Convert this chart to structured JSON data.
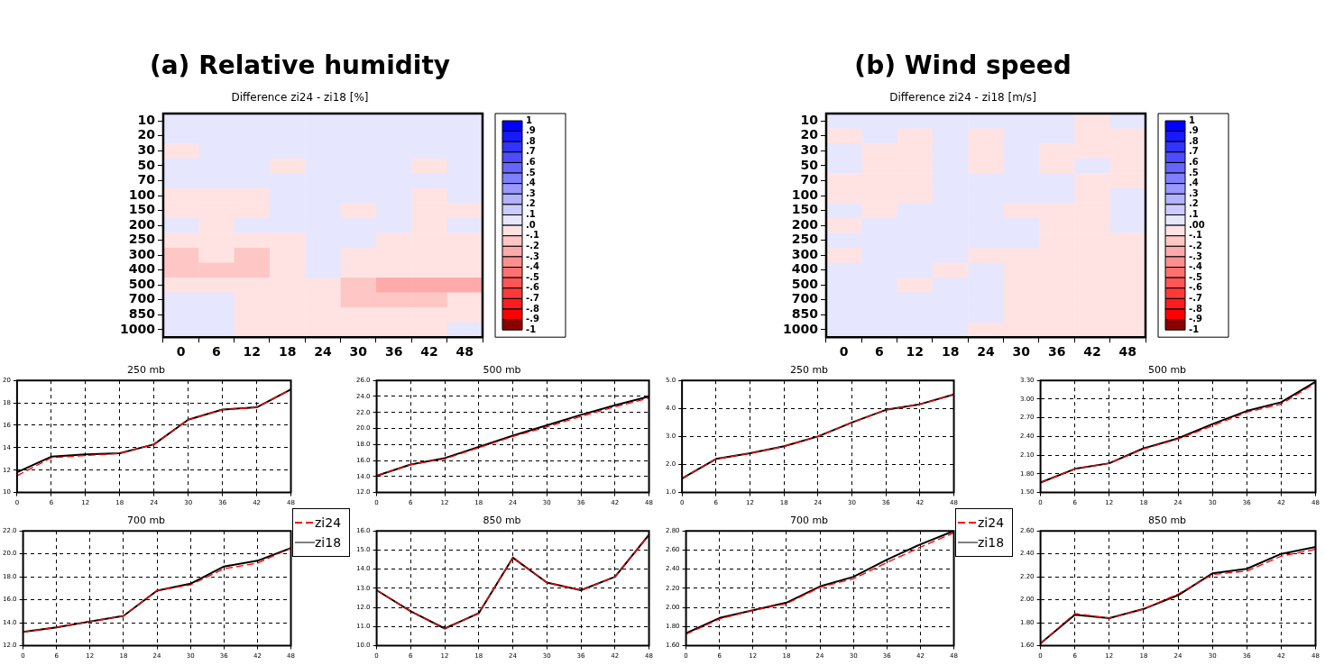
{
  "chart_data": [
    {
      "type": "heatmap",
      "title": "(a) Relative humidity",
      "subtitle": "Difference zi24 - zi18 [%]",
      "categories": [
        "0",
        "6",
        "12",
        "18",
        "24",
        "30",
        "36",
        "42",
        "48"
      ],
      "y_categories": [
        "10",
        "20",
        "30",
        "50",
        "70",
        "100",
        "150",
        "200",
        "250",
        "300",
        "400",
        "500",
        "700",
        "850",
        "1000"
      ],
      "cells": [
        [
          0.1,
          0.1,
          0.1,
          0.1,
          0.1,
          0.1,
          0.1,
          0.1,
          0.1
        ],
        [
          0.1,
          0.1,
          0.1,
          0.1,
          0.1,
          0.1,
          0.1,
          0.1,
          0.1
        ],
        [
          -0.1,
          0.1,
          0.1,
          0.1,
          0.1,
          0.1,
          0.1,
          0.1,
          0.1
        ],
        [
          0.1,
          0.1,
          0.1,
          -0.1,
          0.1,
          0.1,
          0.1,
          -0.1,
          0.1
        ],
        [
          0.1,
          0.1,
          0.1,
          0.1,
          0.1,
          0.1,
          0.1,
          0.1,
          0.1
        ],
        [
          -0.1,
          -0.1,
          -0.1,
          0.1,
          0.1,
          0.1,
          0.1,
          -0.1,
          0.1
        ],
        [
          -0.1,
          -0.1,
          -0.1,
          0.1,
          0.1,
          -0.1,
          0.1,
          -0.1,
          -0.1
        ],
        [
          0.1,
          -0.1,
          0.1,
          0.1,
          0.1,
          0.1,
          0.1,
          -0.1,
          0.1
        ],
        [
          -0.1,
          -0.1,
          -0.1,
          -0.1,
          0.1,
          0.1,
          -0.1,
          -0.1,
          -0.1
        ],
        [
          -0.2,
          -0.1,
          -0.2,
          -0.1,
          0.1,
          -0.1,
          -0.1,
          -0.1,
          -0.1
        ],
        [
          -0.2,
          -0.2,
          -0.2,
          -0.1,
          0.1,
          -0.1,
          -0.1,
          -0.1,
          -0.1
        ],
        [
          -0.1,
          -0.1,
          -0.1,
          -0.1,
          -0.1,
          -0.2,
          -0.3,
          -0.3,
          -0.3
        ],
        [
          0.1,
          0.1,
          -0.1,
          -0.1,
          -0.1,
          -0.2,
          -0.2,
          -0.2,
          -0.1
        ],
        [
          0.1,
          0.1,
          -0.1,
          -0.1,
          -0.1,
          -0.1,
          -0.1,
          -0.1,
          -0.1
        ],
        [
          0.1,
          0.1,
          -0.1,
          -0.1,
          -0.1,
          -0.1,
          -0.1,
          -0.1,
          0.1
        ]
      ],
      "clim": [
        -1,
        1
      ],
      "cticks": [
        {
          "value": 1,
          "label": "1"
        },
        {
          "value": 0.9,
          "label": ".9"
        },
        {
          "value": 0.8,
          "label": ".8"
        },
        {
          "value": 0.7,
          "label": ".7"
        },
        {
          "value": 0.6,
          "label": ".6"
        },
        {
          "value": 0.5,
          "label": ".5"
        },
        {
          "value": 0.4,
          "label": ".4"
        },
        {
          "value": 0.3,
          "label": ".3"
        },
        {
          "value": 0.2,
          "label": ".2"
        },
        {
          "value": 0.1,
          "label": ".1"
        },
        {
          "value": 0,
          "label": ".0"
        },
        {
          "value": -0.1,
          "label": "-.1"
        },
        {
          "value": -0.2,
          "label": "-.2"
        },
        {
          "value": -0.3,
          "label": "-.3"
        },
        {
          "value": -0.4,
          "label": "-.4"
        },
        {
          "value": -0.5,
          "label": "-.5"
        },
        {
          "value": -0.6,
          "label": "-.6"
        },
        {
          "value": -0.7,
          "label": "-.7"
        },
        {
          "value": -0.8,
          "label": "-.8"
        },
        {
          "value": -0.9,
          "label": "-.9"
        },
        {
          "value": -1,
          "label": "-1"
        }
      ]
    },
    {
      "type": "heatmap",
      "title": "(b) Wind speed",
      "subtitle": "Difference zi24 - zi18 [m/s]",
      "categories": [
        "0",
        "6",
        "12",
        "18",
        "24",
        "30",
        "36",
        "42",
        "48"
      ],
      "y_categories": [
        "10",
        "20",
        "30",
        "50",
        "70",
        "100",
        "150",
        "200",
        "250",
        "300",
        "400",
        "500",
        "700",
        "850",
        "1000"
      ],
      "cells": [
        [
          0.1,
          0.1,
          0.1,
          0.1,
          0.1,
          0.1,
          0.1,
          -0.1,
          0.1
        ],
        [
          -0.1,
          0.1,
          -0.1,
          0.1,
          -0.1,
          0.1,
          0.1,
          -0.1,
          -0.1
        ],
        [
          0.1,
          -0.1,
          -0.1,
          0.1,
          -0.1,
          0.1,
          -0.1,
          -0.1,
          -0.1
        ],
        [
          0.1,
          -0.1,
          -0.1,
          0.1,
          -0.1,
          0.1,
          -0.1,
          0.1,
          -0.1
        ],
        [
          -0.1,
          -0.1,
          -0.1,
          0.1,
          0.1,
          0.1,
          0.1,
          -0.1,
          -0.1
        ],
        [
          -0.1,
          -0.1,
          -0.1,
          0.1,
          0.1,
          0.1,
          0.1,
          -0.1,
          0.1
        ],
        [
          0.1,
          -0.1,
          0.1,
          0.1,
          0.1,
          -0.1,
          -0.1,
          -0.1,
          0.1
        ],
        [
          -0.1,
          0.1,
          0.1,
          0.1,
          0.1,
          0.1,
          -0.1,
          -0.1,
          0.1
        ],
        [
          0.1,
          0.1,
          0.1,
          0.1,
          0.1,
          0.1,
          -0.1,
          -0.1,
          -0.1
        ],
        [
          -0.1,
          0.1,
          0.1,
          0.1,
          -0.1,
          -0.1,
          -0.1,
          -0.1,
          -0.1
        ],
        [
          0.1,
          0.1,
          0.1,
          -0.1,
          0.1,
          -0.1,
          -0.1,
          -0.1,
          -0.1
        ],
        [
          0.1,
          0.1,
          -0.1,
          0.1,
          0.1,
          -0.1,
          -0.1,
          -0.1,
          -0.1
        ],
        [
          0.1,
          0.1,
          0.1,
          0.1,
          0.1,
          -0.1,
          -0.1,
          -0.1,
          -0.1
        ],
        [
          0.1,
          0.1,
          0.1,
          0.1,
          0.1,
          -0.1,
          -0.1,
          -0.1,
          -0.1
        ],
        [
          0.1,
          0.1,
          0.1,
          0.1,
          -0.1,
          -0.1,
          -0.1,
          -0.1,
          -0.1
        ]
      ],
      "clim": [
        -1,
        1
      ],
      "cticks": [
        {
          "value": 1,
          "label": "1"
        },
        {
          "value": 0.9,
          "label": ".9"
        },
        {
          "value": 0.8,
          "label": ".8"
        },
        {
          "value": 0.7,
          "label": ".7"
        },
        {
          "value": 0.6,
          "label": ".6"
        },
        {
          "value": 0.5,
          "label": ".5"
        },
        {
          "value": 0.4,
          "label": ".4"
        },
        {
          "value": 0.3,
          "label": ".3"
        },
        {
          "value": 0.2,
          "label": ".2"
        },
        {
          "value": 0.1,
          "label": ".1"
        },
        {
          "value": 0,
          "label": ".00"
        },
        {
          "value": -0.1,
          "label": "-.1"
        },
        {
          "value": -0.2,
          "label": "-.2"
        },
        {
          "value": -0.3,
          "label": "-.3"
        },
        {
          "value": -0.4,
          "label": "-.4"
        },
        {
          "value": -0.5,
          "label": "-.5"
        },
        {
          "value": -0.6,
          "label": "-.6"
        },
        {
          "value": -0.7,
          "label": "-.7"
        },
        {
          "value": -0.8,
          "label": "-.8"
        },
        {
          "value": -0.9,
          "label": "-.9"
        },
        {
          "value": -1,
          "label": "-1"
        }
      ]
    },
    {
      "type": "line",
      "title": "250 mb",
      "x": [
        0,
        6,
        12,
        18,
        24,
        30,
        36,
        42,
        48
      ],
      "xlim": [
        0,
        48
      ],
      "xticks": [
        0,
        6,
        12,
        18,
        24,
        30,
        36,
        42,
        48
      ],
      "ylim": [
        10,
        20
      ],
      "yticks": [
        10,
        12,
        14,
        16,
        18,
        20
      ],
      "grid": true,
      "legend": false,
      "series": [
        {
          "color": "#ff0000",
          "line_style": "dashed",
          "values": [
            11.5,
            13.1,
            13.3,
            13.5,
            14.3,
            16.5,
            17.4,
            17.6,
            19.2
          ]
        },
        {
          "color": "#000000",
          "line_style": "solid",
          "values": [
            11.8,
            13.2,
            13.4,
            13.5,
            14.3,
            16.5,
            17.4,
            17.6,
            19.2
          ]
        }
      ]
    },
    {
      "type": "line",
      "title": "500 mb",
      "x": [
        0,
        6,
        12,
        18,
        24,
        30,
        36,
        42,
        48
      ],
      "xlim": [
        0,
        48
      ],
      "xticks": [
        0,
        6,
        12,
        18,
        24,
        30,
        36,
        42,
        48
      ],
      "ylim": [
        12,
        26
      ],
      "yticks": [
        {
          "value": 12,
          "label": "12.0"
        },
        {
          "value": 14,
          "label": "14.0"
        },
        {
          "value": 16,
          "label": "16.0"
        },
        {
          "value": 18,
          "label": "18.0"
        },
        {
          "value": 20,
          "label": "20.0"
        },
        {
          "value": 22,
          "label": "22.0"
        },
        {
          "value": 24,
          "label": "24.0"
        },
        {
          "value": 26,
          "label": "26.0"
        }
      ],
      "grid": true,
      "legend": false,
      "series": [
        {
          "color": "#ff0000",
          "line_style": "dashed",
          "values": [
            14.1,
            15.5,
            16.2,
            17.6,
            19.0,
            20.2,
            21.5,
            22.7,
            23.8
          ]
        },
        {
          "color": "#000000",
          "line_style": "solid",
          "values": [
            14.1,
            15.5,
            16.3,
            17.7,
            19.1,
            20.4,
            21.7,
            22.9,
            24.0
          ]
        }
      ]
    },
    {
      "type": "line",
      "title": "250 mb",
      "x": [
        0,
        6,
        12,
        18,
        24,
        30,
        36,
        42,
        48
      ],
      "xlim": [
        0,
        48
      ],
      "xticks": [
        0,
        6,
        12,
        18,
        24,
        30,
        36,
        42,
        48
      ],
      "ylim": [
        1,
        5
      ],
      "yticks": [
        {
          "value": 1,
          "label": "1.0"
        },
        {
          "value": 2,
          "label": "2.0"
        },
        {
          "value": 3,
          "label": "3.0"
        },
        {
          "value": 4,
          "label": "4.0"
        },
        {
          "value": 5,
          "label": "5.0"
        }
      ],
      "grid": true,
      "legend": false,
      "series": [
        {
          "color": "#ff0000",
          "line_style": "dashed",
          "values": [
            1.5,
            2.2,
            2.4,
            2.65,
            3.0,
            3.5,
            3.95,
            4.15,
            4.5
          ]
        },
        {
          "color": "#000000",
          "line_style": "solid",
          "values": [
            1.5,
            2.2,
            2.4,
            2.65,
            3.0,
            3.5,
            3.95,
            4.15,
            4.5
          ]
        }
      ]
    },
    {
      "type": "line",
      "title": "500 mb",
      "x": [
        0,
        6,
        12,
        18,
        24,
        30,
        36,
        42,
        48
      ],
      "xlim": [
        0,
        48
      ],
      "xticks": [
        0,
        6,
        12,
        18,
        24,
        30,
        36,
        42,
        48
      ],
      "ylim": [
        1.5,
        3.3
      ],
      "yticks": [
        {
          "value": 1.5,
          "label": "1.50"
        },
        {
          "value": 1.8,
          "label": "1.80"
        },
        {
          "value": 2.1,
          "label": "2.10"
        },
        {
          "value": 2.4,
          "label": "2.40"
        },
        {
          "value": 2.7,
          "label": "2.70"
        },
        {
          "value": 3.0,
          "label": "3.00"
        },
        {
          "value": 3.3,
          "label": "3.30"
        }
      ],
      "grid": true,
      "legend": false,
      "series": [
        {
          "color": "#ff0000",
          "line_style": "dashed",
          "values": [
            1.66,
            1.88,
            1.97,
            2.2,
            2.36,
            2.57,
            2.79,
            2.92,
            3.26
          ]
        },
        {
          "color": "#000000",
          "line_style": "solid",
          "values": [
            1.66,
            1.88,
            1.97,
            2.21,
            2.37,
            2.6,
            2.81,
            2.95,
            3.28
          ]
        }
      ]
    },
    {
      "type": "line",
      "title": "700 mb",
      "x": [
        0,
        6,
        12,
        18,
        24,
        30,
        36,
        42,
        48
      ],
      "xlim": [
        0,
        48
      ],
      "xticks": [
        0,
        6,
        12,
        18,
        24,
        30,
        36,
        42,
        48
      ],
      "ylim": [
        12,
        22
      ],
      "yticks": [
        {
          "value": 12,
          "label": "12.0"
        },
        {
          "value": 14,
          "label": "14.0"
        },
        {
          "value": 16,
          "label": "16.0"
        },
        {
          "value": 18,
          "label": "18.0"
        },
        {
          "value": 20,
          "label": "20.0"
        },
        {
          "value": 22,
          "label": "22.0"
        }
      ],
      "grid": true,
      "legend": "right",
      "series": [
        {
          "name": "zi24",
          "color": "#ff0000",
          "line_style": "dashed",
          "values": [
            13.2,
            13.6,
            14.1,
            14.6,
            16.8,
            17.3,
            18.7,
            19.2,
            20.5
          ]
        },
        {
          "name": "zi18",
          "color": "#000000",
          "line_style": "solid",
          "values": [
            13.2,
            13.6,
            14.1,
            14.6,
            16.8,
            17.4,
            18.9,
            19.4,
            20.5
          ]
        }
      ]
    },
    {
      "type": "line",
      "title": "850 mb",
      "x": [
        0,
        6,
        12,
        18,
        24,
        30,
        36,
        42,
        48
      ],
      "xlim": [
        0,
        48
      ],
      "xticks": [
        0,
        6,
        12,
        18,
        24,
        30,
        36,
        42,
        48
      ],
      "ylim": [
        10,
        16
      ],
      "yticks": [
        {
          "value": 10,
          "label": "10.0"
        },
        {
          "value": 11,
          "label": "11.0"
        },
        {
          "value": 12,
          "label": "12.0"
        },
        {
          "value": 13,
          "label": "13.0"
        },
        {
          "value": 14,
          "label": "14.0"
        },
        {
          "value": 15,
          "label": "15.0"
        },
        {
          "value": 16,
          "label": "16.0"
        }
      ],
      "grid": true,
      "legend": false,
      "series": [
        {
          "color": "#ff0000",
          "line_style": "dashed",
          "values": [
            12.9,
            11.8,
            10.9,
            11.7,
            14.6,
            13.3,
            12.9,
            13.6,
            15.8
          ]
        },
        {
          "color": "#000000",
          "line_style": "solid",
          "values": [
            12.9,
            11.8,
            10.9,
            11.7,
            14.6,
            13.3,
            12.9,
            13.6,
            15.8
          ]
        }
      ]
    },
    {
      "type": "line",
      "title": "700 mb",
      "x": [
        0,
        6,
        12,
        18,
        24,
        30,
        36,
        42,
        48
      ],
      "xlim": [
        0,
        48
      ],
      "xticks": [
        0,
        6,
        12,
        18,
        24,
        30,
        36,
        42,
        48
      ],
      "ylim": [
        1.6,
        2.8
      ],
      "yticks": [
        {
          "value": 1.6,
          "label": "1.60"
        },
        {
          "value": 1.8,
          "label": "1.80"
        },
        {
          "value": 2.0,
          "label": "2.00"
        },
        {
          "value": 2.2,
          "label": "2.20"
        },
        {
          "value": 2.4,
          "label": "2.40"
        },
        {
          "value": 2.6,
          "label": "2.60"
        },
        {
          "value": 2.8,
          "label": "2.80"
        }
      ],
      "grid": true,
      "legend": "right",
      "series": [
        {
          "name": "zi24",
          "color": "#ff0000",
          "line_style": "dashed",
          "values": [
            1.72,
            1.88,
            1.97,
            2.04,
            2.21,
            2.3,
            2.47,
            2.63,
            2.78
          ]
        },
        {
          "name": "zi18",
          "color": "#000000",
          "line_style": "solid",
          "values": [
            1.73,
            1.89,
            1.97,
            2.05,
            2.22,
            2.32,
            2.5,
            2.66,
            2.8
          ]
        }
      ]
    },
    {
      "type": "line",
      "title": "850 mb",
      "x": [
        0,
        6,
        12,
        18,
        24,
        30,
        36,
        42,
        48
      ],
      "xlim": [
        0,
        48
      ],
      "xticks": [
        0,
        6,
        12,
        18,
        24,
        30,
        36,
        42,
        48
      ],
      "ylim": [
        1.6,
        2.6
      ],
      "yticks": [
        {
          "value": 1.6,
          "label": "1.60"
        },
        {
          "value": 1.8,
          "label": "1.80"
        },
        {
          "value": 2.0,
          "label": "2.00"
        },
        {
          "value": 2.2,
          "label": "2.20"
        },
        {
          "value": 2.4,
          "label": "2.40"
        },
        {
          "value": 2.6,
          "label": "2.60"
        }
      ],
      "grid": true,
      "legend": false,
      "series": [
        {
          "color": "#ff0000",
          "line_style": "dashed",
          "values": [
            1.62,
            1.88,
            1.84,
            1.92,
            2.05,
            2.22,
            2.25,
            2.38,
            2.44
          ]
        },
        {
          "color": "#000000",
          "line_style": "solid",
          "values": [
            1.62,
            1.87,
            1.84,
            1.92,
            2.04,
            2.23,
            2.27,
            2.4,
            2.46
          ]
        }
      ]
    }
  ]
}
